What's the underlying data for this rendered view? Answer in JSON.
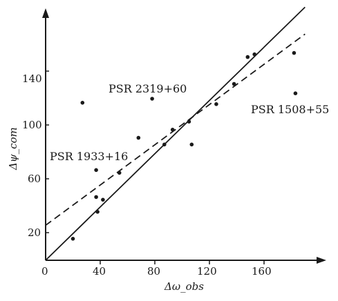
{
  "chart_data": {
    "type": "scatter",
    "xlabel": "Δω_obs",
    "ylabel": "Δψ_com",
    "xlim": [
      0,
      200
    ],
    "ylim": [
      0,
      180
    ],
    "x_ticks": [
      "0",
      "40",
      "80",
      "120",
      "160"
    ],
    "y_ticks": [
      "20",
      "60",
      "100",
      "140"
    ],
    "points": [
      {
        "x": 20,
        "y": 16
      },
      {
        "x": 27,
        "y": 117
      },
      {
        "x": 37,
        "y": 67
      },
      {
        "x": 37,
        "y": 47
      },
      {
        "x": 38,
        "y": 36
      },
      {
        "x": 42,
        "y": 45
      },
      {
        "x": 54,
        "y": 65
      },
      {
        "x": 68,
        "y": 91
      },
      {
        "x": 78,
        "y": 120
      },
      {
        "x": 87,
        "y": 86
      },
      {
        "x": 93,
        "y": 97
      },
      {
        "x": 105,
        "y": 103
      },
      {
        "x": 107,
        "y": 86
      },
      {
        "x": 125,
        "y": 116
      },
      {
        "x": 138,
        "y": 131
      },
      {
        "x": 148,
        "y": 151
      },
      {
        "x": 153,
        "y": 153
      },
      {
        "x": 182,
        "y": 154
      },
      {
        "x": 183,
        "y": 124
      }
    ],
    "solid_line": {
      "x": [
        0,
        190
      ],
      "y": [
        0,
        188
      ]
    },
    "dashed_line": {
      "x": [
        0,
        190
      ],
      "y": [
        26,
        168
      ]
    },
    "annotations": [
      {
        "text": "PSR 2319+60",
        "x": 120,
        "y": 128
      },
      {
        "text": "PSR 1508+55",
        "x": 185,
        "y": 111
      },
      {
        "text": "PSR 1933+16",
        "x": 35,
        "y": 74
      }
    ]
  }
}
